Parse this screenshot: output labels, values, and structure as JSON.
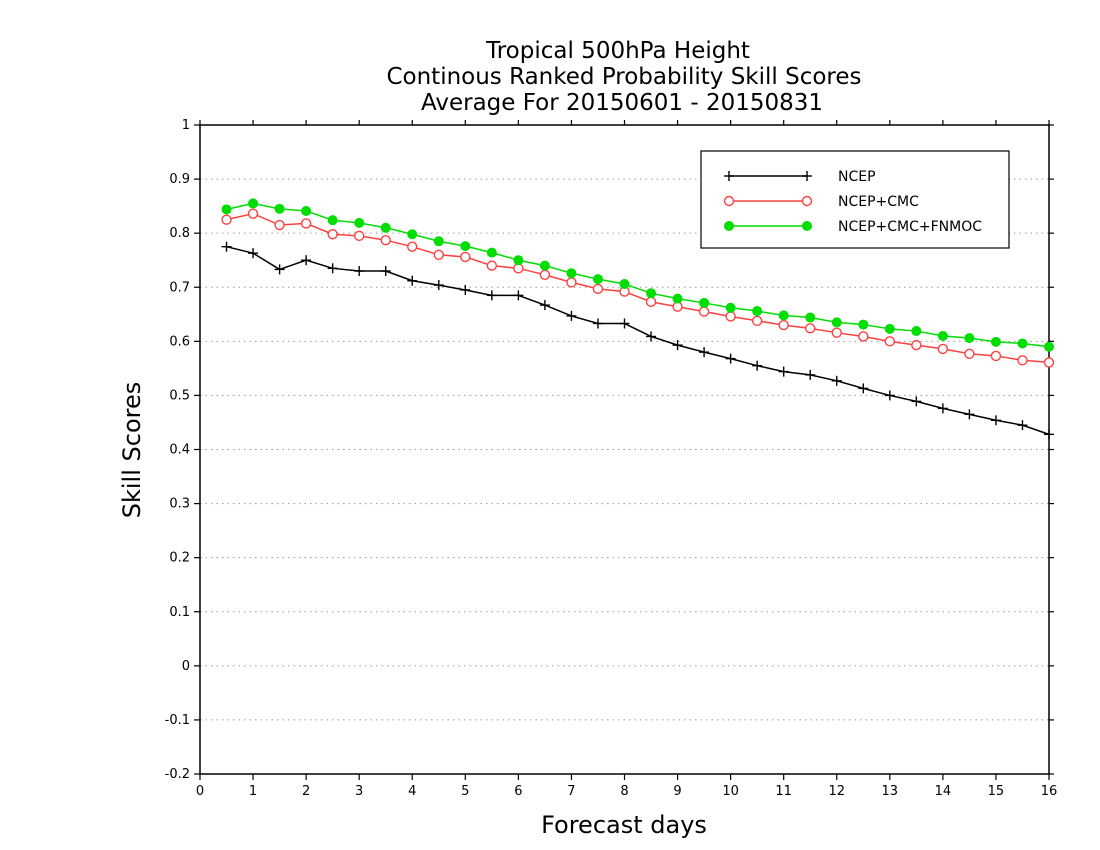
{
  "chart_data": {
    "type": "line",
    "title": [
      "Tropical 500hPa Height",
      "Continous Ranked Probability Skill Scores",
      "Average For 20150601 - 20150831"
    ],
    "xlabel": "Forecast days",
    "ylabel": "Skill Scores",
    "xlim": [
      0,
      16
    ],
    "ylim": [
      -0.2,
      1
    ],
    "xticks": [
      "0",
      "1",
      "2",
      "3",
      "4",
      "5",
      "6",
      "7",
      "8",
      "9",
      "10",
      "11",
      "12",
      "13",
      "14",
      "15",
      "16"
    ],
    "yticks": [
      "-0.2",
      "-0.1",
      "0",
      "0.1",
      "0.2",
      "0.3",
      "0.4",
      "0.5",
      "0.6",
      "0.7",
      "0.8",
      "0.9",
      "1"
    ],
    "grid": "horizontal-dotted",
    "legend_position": "top-right",
    "x": [
      0.5,
      1,
      1.5,
      2,
      2.5,
      3,
      3.5,
      4,
      4.5,
      5,
      5.5,
      6,
      6.5,
      7,
      7.5,
      8,
      8.5,
      9,
      9.5,
      10,
      10.5,
      11,
      11.5,
      12,
      12.5,
      13,
      13.5,
      14,
      14.5,
      15,
      15.5,
      16
    ],
    "series": [
      {
        "name": "NCEP",
        "color": "#000000",
        "marker": "plus",
        "values": [
          0.775,
          0.763,
          0.733,
          0.75,
          0.735,
          0.73,
          0.73,
          0.712,
          0.704,
          0.695,
          0.685,
          0.685,
          0.667,
          0.647,
          0.633,
          0.633,
          0.609,
          0.593,
          0.58,
          0.568,
          0.555,
          0.544,
          0.538,
          0.527,
          0.513,
          0.5,
          0.489,
          0.476,
          0.465,
          0.454,
          0.445,
          0.428
        ]
      },
      {
        "name": "NCEP+CMC",
        "color": "#ff4040",
        "marker": "open-circle",
        "values": [
          0.825,
          0.836,
          0.815,
          0.818,
          0.798,
          0.795,
          0.787,
          0.775,
          0.76,
          0.756,
          0.74,
          0.735,
          0.723,
          0.709,
          0.697,
          0.692,
          0.673,
          0.664,
          0.655,
          0.646,
          0.638,
          0.63,
          0.624,
          0.616,
          0.609,
          0.6,
          0.593,
          0.586,
          0.577,
          0.573,
          0.565,
          0.561
        ]
      },
      {
        "name": "NCEP+CMC+FNMOC",
        "color": "#00dd00",
        "marker": "filled-circle",
        "values": [
          0.844,
          0.855,
          0.845,
          0.841,
          0.824,
          0.819,
          0.81,
          0.798,
          0.785,
          0.776,
          0.764,
          0.75,
          0.74,
          0.726,
          0.715,
          0.706,
          0.689,
          0.679,
          0.671,
          0.662,
          0.656,
          0.648,
          0.644,
          0.635,
          0.631,
          0.623,
          0.619,
          0.61,
          0.606,
          0.599,
          0.596,
          0.59
        ]
      }
    ]
  }
}
